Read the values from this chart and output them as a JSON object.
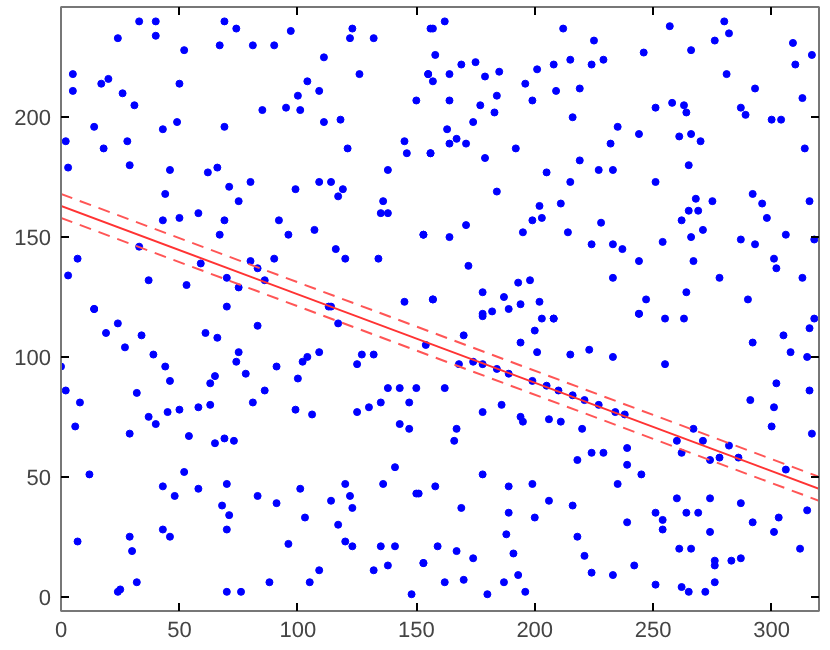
{
  "chart_data": {
    "type": "scatter",
    "xlim": [
      0,
      320
    ],
    "ylim": [
      -6,
      246
    ],
    "xticks": [
      0,
      50,
      100,
      150,
      200,
      250,
      300
    ],
    "yticks": [
      0,
      50,
      100,
      150,
      200
    ],
    "grid": false,
    "series": [
      {
        "color": "#0000ff",
        "marker": "circle",
        "x": [
          33,
          40,
          24,
          40,
          69,
          74,
          81,
          90,
          97,
          123,
          122,
          132,
          156,
          52,
          67,
          5,
          17,
          20,
          50,
          26,
          31,
          5,
          104,
          111,
          126,
          109,
          100,
          95,
          101,
          85,
          150,
          155,
          157,
          118,
          111,
          49,
          43,
          14,
          69,
          28,
          2,
          18,
          121,
          145,
          146,
          156,
          29,
          3,
          46,
          66,
          62,
          71,
          80,
          99,
          109,
          114,
          117,
          119,
          138,
          44,
          75,
          136,
          135,
          138,
          58,
          50,
          43,
          69,
          92,
          107,
          96,
          67,
          153,
          7,
          33,
          116,
          120,
          90,
          134,
          59,
          80,
          3,
          37,
          70,
          83,
          53,
          75,
          86,
          145,
          157,
          14,
          70,
          113,
          157,
          162,
          212,
          225,
          257,
          280,
          282,
          276,
          246,
          266,
          317,
          309,
          158,
          169,
          175,
          164,
          155,
          179,
          185,
          201,
          208,
          215,
          224,
          229,
          196,
          219,
          209,
          199,
          184,
          177,
          164,
          281,
          293,
          310,
          313,
          251,
          258,
          263,
          264,
          287,
          289,
          300,
          304,
          183,
          174,
          216,
          163,
          164,
          171,
          167,
          156,
          179,
          192,
          232,
          235,
          244,
          261,
          266,
          270,
          314,
          219,
          265,
          205,
          215,
          227,
          233,
          251,
          184,
          292,
          296,
          316,
          275,
          268,
          265,
          269,
          262,
          202,
          211,
          203,
          199,
          195,
          228,
          214,
          271,
          266,
          287,
          298,
          306,
          318,
          164,
          171,
          153,
          224,
          233,
          237,
          254,
          244,
          267,
          293,
          301,
          302,
          313,
          172,
          193,
          198,
          233,
          278,
          178,
          187,
          202,
          194,
          247,
          264,
          290,
          157,
          182,
          178,
          203,
          208,
          244,
          255,
          318,
          14,
          19,
          24,
          34,
          27,
          39,
          44,
          46,
          32,
          8,
          2,
          0,
          6,
          29,
          37,
          40,
          45,
          50,
          58,
          63,
          63,
          65,
          61,
          66,
          75,
          74,
          78,
          83,
          91,
          86,
          81,
          100,
          102,
          104,
          109,
          99,
          106,
          54,
          65,
          69,
          73,
          12,
          52,
          58,
          43,
          48,
          70,
          83,
          68,
          71,
          70,
          91,
          101,
          103,
          114,
          117,
          96,
          7,
          29,
          30,
          43,
          46,
          24,
          32,
          25,
          70,
          76,
          88,
          105,
          109,
          120,
          123,
          120,
          122,
          123,
          125,
          127,
          132,
          125,
          130,
          135,
          138,
          143,
          147,
          143,
          147,
          136,
          141,
          151,
          132,
          138,
          135,
          141,
          153,
          148,
          117,
          114,
          178,
          189,
          200,
          194,
          201,
          208,
          215,
          223,
          233,
          244,
          255,
          263,
          305,
          316,
          292,
          308,
          315,
          302,
          316,
          291,
          301,
          300,
          317,
          162,
          150,
          168,
          170,
          154,
          174,
          178,
          184,
          189,
          199,
          205,
          210,
          216,
          221,
          227,
          234,
          238,
          267,
          274,
          278,
          286,
          306,
          282,
          271,
          262,
          167,
          166,
          178,
          186,
          194,
          195,
          206,
          211,
          220,
          218,
          224,
          229,
          239,
          239,
          235,
          245,
          260,
          158,
          178,
          189,
          199,
          150,
          169,
          189,
          200,
          206,
          216,
          239,
          251,
          254,
          260,
          264,
          274,
          269,
          287,
          292,
          301,
          303,
          315,
          312,
          159,
          167,
          174,
          188,
          191,
          153,
          162,
          170,
          187,
          193,
          196,
          180,
          218,
          221,
          224,
          233,
          242,
          251,
          262,
          265,
          272,
          276,
          276,
          276,
          283,
          287,
          254,
          261,
          266,
          274
        ],
        "values": [
          240,
          240,
          233,
          234,
          240,
          237,
          230,
          230,
          236,
          237,
          233,
          233,
          237,
          228,
          230,
          218,
          214,
          216,
          214,
          210,
          205,
          211,
          215,
          225,
          218,
          211,
          209,
          204,
          203,
          203,
          207,
          218,
          215,
          199,
          198,
          198,
          195,
          196,
          196,
          190,
          190,
          187,
          187,
          190,
          185,
          185,
          180,
          179,
          178,
          179,
          177,
          171,
          173,
          170,
          173,
          173,
          167,
          170,
          178,
          168,
          165,
          165,
          160,
          160,
          160,
          158,
          157,
          157,
          157,
          153,
          151,
          151,
          151,
          141,
          146,
          145,
          141,
          141,
          141,
          139,
          140,
          134,
          132,
          133,
          137,
          130,
          129,
          132,
          123,
          124,
          120,
          121,
          121,
          237,
          240,
          237,
          232,
          238,
          240,
          235,
          232,
          227,
          228,
          226,
          231,
          226,
          222,
          223,
          218,
          218,
          217,
          219,
          220,
          222,
          224,
          222,
          224,
          214,
          212,
          211,
          207,
          209,
          205,
          207,
          218,
          212,
          222,
          208,
          204,
          206,
          205,
          202,
          204,
          201,
          199,
          199,
          202,
          198,
          200,
          195,
          189,
          189,
          191,
          185,
          183,
          187,
          189,
          196,
          193,
          192,
          193,
          190,
          187,
          182,
          180,
          177,
          173,
          178,
          178,
          173,
          169,
          168,
          164,
          165,
          165,
          166,
          161,
          161,
          157,
          163,
          164,
          158,
          157,
          152,
          156,
          152,
          153,
          150,
          149,
          158,
          151,
          149,
          150,
          155,
          151,
          147,
          147,
          145,
          148,
          140,
          140,
          147,
          141,
          137,
          133,
          138,
          131,
          132,
          133,
          133,
          127,
          125,
          123,
          122,
          124,
          127,
          124,
          124,
          119,
          117,
          116,
          116,
          118,
          116,
          116,
          120,
          110,
          114,
          109,
          104,
          101,
          96,
          90,
          85,
          81,
          86,
          96,
          71,
          68,
          75,
          72,
          77,
          78,
          79,
          80,
          89,
          92,
          110,
          108,
          102,
          98,
          93,
          113,
          96,
          86,
          81,
          91,
          98,
          100,
          102,
          78,
          76,
          67,
          64,
          66,
          65,
          51,
          52,
          45,
          46,
          42,
          47,
          42,
          38,
          34,
          28,
          39,
          45,
          33,
          40,
          30,
          22,
          23,
          25,
          19,
          28,
          25,
          2,
          6,
          3,
          2,
          2,
          6,
          6,
          11,
          23,
          21,
          47,
          42,
          37,
          97,
          101,
          101,
          77,
          79,
          81,
          87,
          87,
          81,
          72,
          70,
          47,
          54,
          43,
          11,
          13,
          21,
          21,
          14,
          1,
          114,
          121,
          118,
          120,
          111,
          106,
          102,
          116,
          101,
          103,
          100,
          118,
          97,
          116,
          109,
          112,
          106,
          102,
          100,
          89,
          86,
          82,
          79,
          71,
          68,
          87,
          87,
          97,
          109,
          105,
          98,
          97,
          95,
          93,
          90,
          88,
          86,
          84,
          82,
          80,
          77,
          76,
          70,
          57,
          58,
          58,
          53,
          63,
          65,
          60,
          70,
          65,
          77,
          80,
          75,
          73,
          74,
          73,
          70,
          57,
          60,
          60,
          62,
          55,
          47,
          51,
          65,
          46,
          51,
          46,
          47,
          43,
          37,
          35,
          33,
          40,
          38,
          31,
          35,
          28,
          41,
          35,
          41,
          35,
          39,
          31,
          27,
          33,
          36,
          20,
          21,
          19,
          16,
          26,
          18,
          14,
          6,
          7,
          6,
          9,
          2,
          1,
          25,
          17,
          10,
          9,
          13,
          5,
          4,
          2,
          2,
          6,
          15,
          13,
          15,
          16,
          32,
          20,
          20,
          27
        ]
      },
      {
        "type": "line",
        "color": "#ff3333",
        "line_style": "solid",
        "marker": "none",
        "x": [
          0,
          320
        ],
        "values": [
          163,
          45
        ]
      },
      {
        "type": "line",
        "color": "#ff5555",
        "line_style": "dashed",
        "marker": "none",
        "x": [
          0,
          320
        ],
        "values": [
          168,
          50
        ]
      },
      {
        "type": "line",
        "color": "#ff5555",
        "line_style": "dashed",
        "marker": "none",
        "x": [
          0,
          320
        ],
        "values": [
          158,
          40
        ]
      }
    ]
  }
}
